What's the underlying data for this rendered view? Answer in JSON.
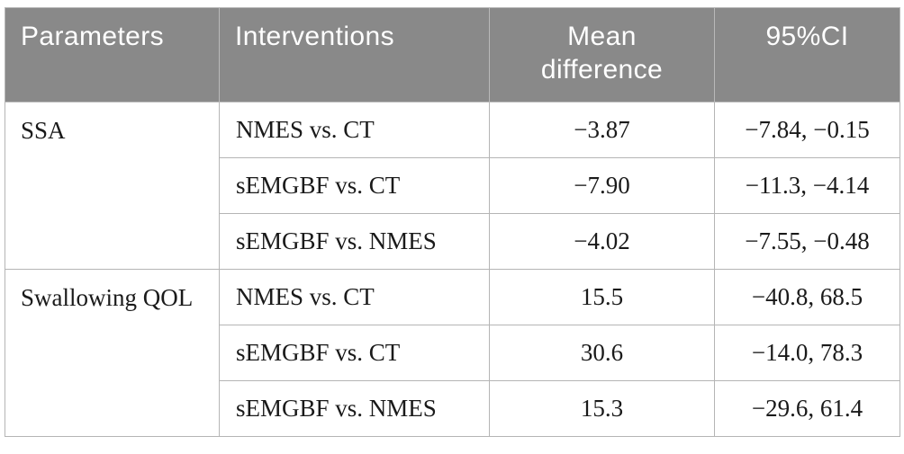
{
  "colors": {
    "header_bg": "#898989",
    "header_text": "#ffffff",
    "body_text": "#1a1a1a",
    "border": "#b5b5b5"
  },
  "table": {
    "headers": {
      "parameters": "Parameters",
      "interventions": "Interventions",
      "mean_difference": "Mean difference",
      "ci": "95%CI"
    },
    "groups": [
      {
        "parameter": "SSA",
        "rows": [
          {
            "intervention": "NMES vs. CT",
            "mean_difference": "−3.87",
            "ci": "−7.84, −0.15"
          },
          {
            "intervention": "sEMGBF vs. CT",
            "mean_difference": "−7.90",
            "ci": "−11.3, −4.14"
          },
          {
            "intervention": "sEMGBF vs. NMES",
            "mean_difference": "−4.02",
            "ci": "−7.55, −0.48"
          }
        ]
      },
      {
        "parameter": "Swallowing QOL",
        "rows": [
          {
            "intervention": "NMES vs. CT",
            "mean_difference": "15.5",
            "ci": "−40.8, 68.5"
          },
          {
            "intervention": "sEMGBF vs. CT",
            "mean_difference": "30.6",
            "ci": "−14.0, 78.3"
          },
          {
            "intervention": "sEMGBF vs. NMES",
            "mean_difference": "15.3",
            "ci": "−29.6, 61.4"
          }
        ]
      }
    ]
  }
}
